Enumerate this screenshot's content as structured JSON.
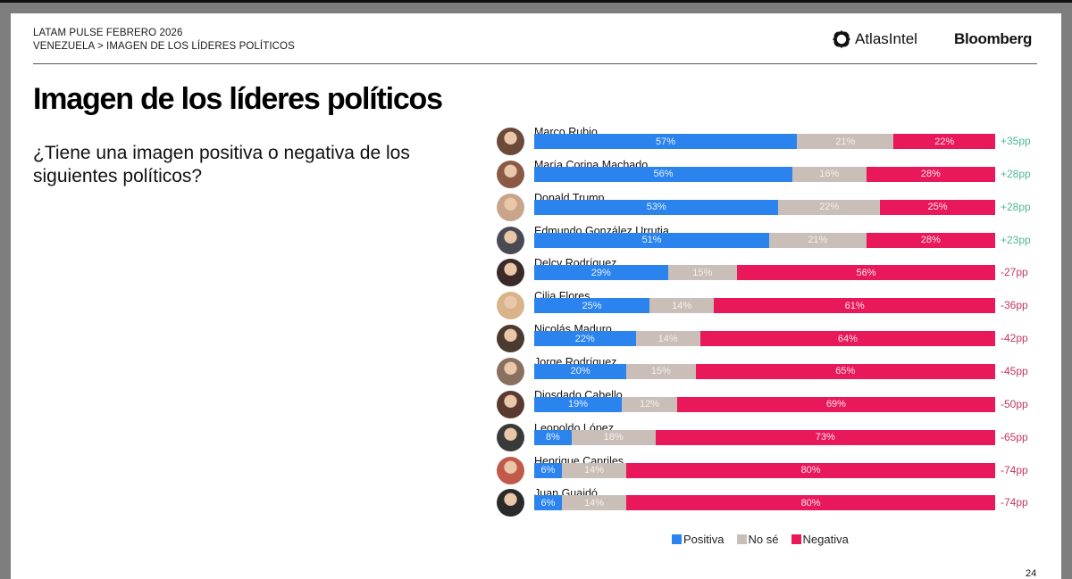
{
  "header": {
    "line1": "LATAM PULSE FEBRERO 2026",
    "line2": "VENEZUELA > IMAGEN DE LOS LÍDERES POLÍTICOS",
    "logos": {
      "atlas": "AtlasIntel",
      "bloomberg": "Bloomberg"
    }
  },
  "slide": {
    "title": "Imagen de los líderes políticos",
    "question": "¿Tiene una imagen positiva o negativa de los siguientes políticos?",
    "page_number": "24"
  },
  "colors": {
    "positiva": "#2b84ee",
    "no_se": "#c9bfb8",
    "negativa": "#e8185a",
    "net_positive": "#4fb79a",
    "net_negative": "#c2365f"
  },
  "chart_data": {
    "type": "bar",
    "orientation": "horizontal-stacked-100",
    "title": "Imagen de los líderes políticos",
    "categories": [
      "Marco Rubio",
      "María Corina Machado",
      "Donald Trump",
      "Edmundo González Urrutia",
      "Delcy Rodríguez",
      "Cilia Flores",
      "Nicolás Maduro",
      "Jorge Rodríguez",
      "Diosdado Cabello",
      "Leopoldo López",
      "Henrique Capriles",
      "Juan Guaidó"
    ],
    "series": [
      {
        "name": "Positiva",
        "values": [
          57,
          56,
          53,
          51,
          29,
          25,
          22,
          20,
          19,
          8,
          6,
          6
        ]
      },
      {
        "name": "No sé",
        "values": [
          21,
          16,
          22,
          21,
          15,
          14,
          14,
          15,
          12,
          18,
          14,
          14
        ]
      },
      {
        "name": "Negativa",
        "values": [
          22,
          28,
          25,
          28,
          56,
          61,
          64,
          65,
          69,
          73,
          80,
          80
        ]
      }
    ],
    "net_labels": [
      "+35pp",
      "+28pp",
      "+28pp",
      "+23pp",
      "-27pp",
      "-36pp",
      "-42pp",
      "-45pp",
      "-50pp",
      "-65pp",
      "-74pp",
      "-74pp"
    ],
    "value_format": "{v}%",
    "legend": [
      "Positiva",
      "No sé",
      "Negativa"
    ],
    "legend_position": "bottom",
    "xlim": [
      0,
      100
    ],
    "grid": false
  }
}
